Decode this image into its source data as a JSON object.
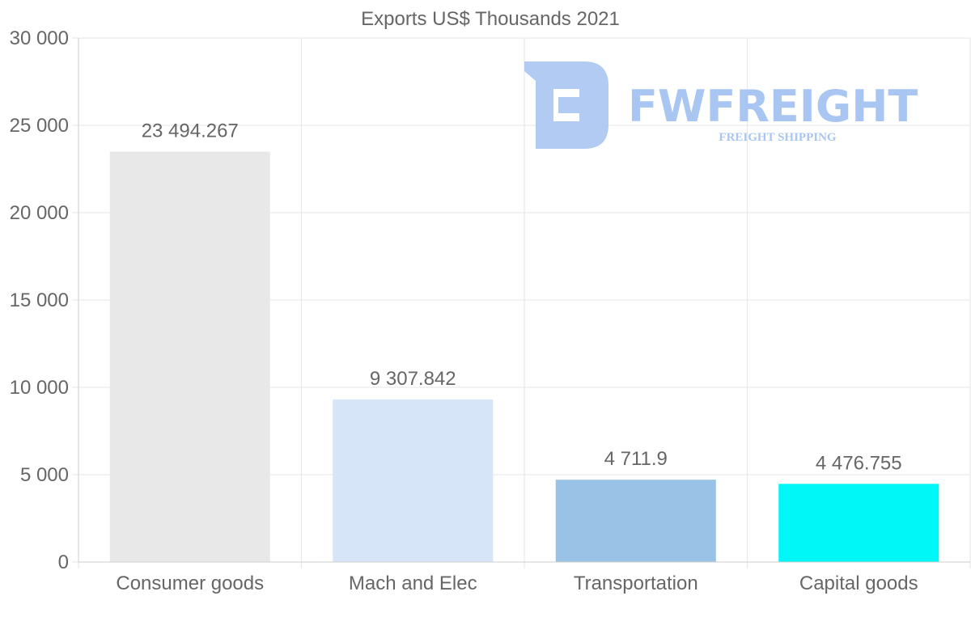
{
  "chart_data": {
    "type": "bar",
    "title": "Exports US$ Thousands 2021",
    "xlabel": "",
    "ylabel": "",
    "categories": [
      "Consumer goods",
      "Mach and Elec",
      "Transportation",
      "Capital goods"
    ],
    "values": [
      23494.267,
      9307.842,
      4711.9,
      4476.755
    ],
    "data_labels": [
      "23 494.267",
      "9 307.842",
      "4 711.9",
      "4 476.755"
    ],
    "colors": [
      "#e8e8e8",
      "#d6e6f8",
      "#9ac2e6",
      "#00f7f7"
    ],
    "ylim": [
      0,
      30000
    ],
    "yticks": [
      0,
      5000,
      10000,
      15000,
      20000,
      25000,
      30000
    ],
    "ytick_labels": [
      "0",
      "5 000",
      "10 000",
      "15 000",
      "20 000",
      "25 000",
      "30 000"
    ],
    "grid": true,
    "legend": "none"
  },
  "watermark": {
    "brand": "FWFREIGHT",
    "tagline": "FREIGHT SHIPPING",
    "color": "#a9c6f2"
  }
}
